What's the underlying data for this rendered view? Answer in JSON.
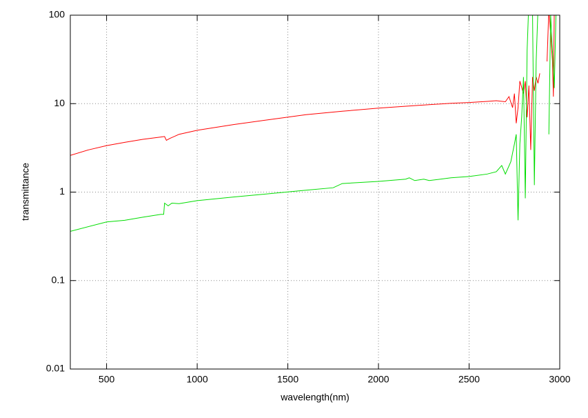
{
  "chart_data": {
    "type": "line",
    "x_label": "wavelength(nm)",
    "y_label": "transmittance",
    "xlim": [
      300,
      3000
    ],
    "ylim": [
      0.01,
      100
    ],
    "xticks": [
      500,
      1000,
      1500,
      2000,
      2500,
      3000
    ],
    "yticks": [
      0.01,
      0.1,
      1,
      10,
      100
    ],
    "log_y": true,
    "grid": true,
    "series": [
      {
        "color": "#ff0000",
        "x": [
          300,
          400,
          500,
          600,
          700,
          800,
          820,
          830,
          850,
          900,
          1000,
          1200,
          1400,
          1600,
          1800,
          2000,
          2200,
          2400,
          2500,
          2600,
          2650,
          2700,
          2720,
          2740,
          2750,
          2760,
          2770,
          2780,
          2800,
          2810,
          2820,
          2830,
          2840,
          2850,
          2860,
          2870,
          2880,
          2890,
          2900,
          2930,
          2940,
          2960,
          2965,
          2970
        ],
        "values": [
          2.6,
          3.0,
          3.35,
          3.65,
          3.95,
          4.2,
          4.25,
          3.85,
          4.05,
          4.5,
          5.0,
          5.8,
          6.6,
          7.5,
          8.2,
          8.9,
          9.5,
          10.1,
          10.3,
          10.6,
          10.8,
          10.5,
          12,
          9,
          13,
          6,
          9,
          18,
          13,
          18,
          7,
          16,
          3,
          20,
          14,
          20,
          17,
          22,
          null,
          30,
          120,
          30,
          12,
          120
        ]
      },
      {
        "color": "#00dd00",
        "x": [
          300,
          500,
          600,
          700,
          800,
          815,
          820,
          840,
          860,
          900,
          1000,
          1200,
          1400,
          1600,
          1750,
          1800,
          2000,
          2150,
          2170,
          2200,
          2250,
          2280,
          2400,
          2500,
          2600,
          2650,
          2680,
          2700,
          2730,
          2750,
          2760,
          2770,
          2780,
          2790,
          2800,
          2810,
          2820,
          2830,
          2850,
          2860,
          2870,
          2880,
          2900,
          2940,
          2950,
          2970,
          2980
        ],
        "values": [
          0.36,
          0.46,
          0.48,
          0.52,
          0.56,
          0.56,
          0.75,
          0.7,
          0.75,
          0.74,
          0.8,
          0.88,
          0.96,
          1.05,
          1.12,
          1.25,
          1.32,
          1.4,
          1.45,
          1.35,
          1.4,
          1.35,
          1.45,
          1.5,
          1.6,
          1.7,
          2.0,
          1.6,
          2.2,
          3.5,
          4.5,
          0.48,
          3.5,
          7,
          20,
          0.85,
          40,
          150,
          100,
          1.2,
          30,
          120,
          null,
          4.5,
          100,
          15,
          120
        ]
      }
    ]
  }
}
